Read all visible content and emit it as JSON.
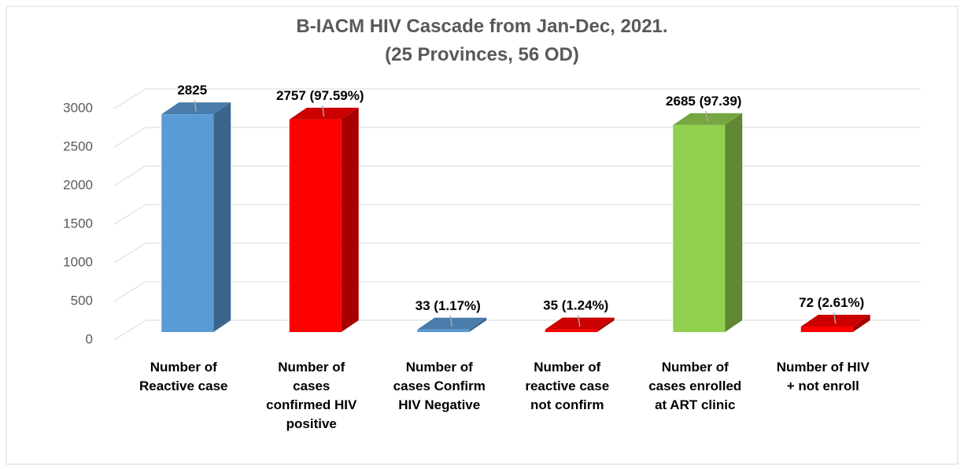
{
  "chart_data": {
    "type": "bar3d",
    "title": "B-IACM HIV Cascade from Jan-Dec, 2021.",
    "subtitle": "(25 Provinces, 56 OD)",
    "categories": [
      "Number of Reactive case",
      "Number of cases confirmed HIV positive",
      "Number of cases Confirm HIV Negative",
      "Number of reactive case not confirm",
      "Number of cases enrolled at ART clinic",
      "Number of HIV + not enroll"
    ],
    "values": [
      2825,
      2757,
      33,
      35,
      2685,
      72
    ],
    "value_labels": [
      "2825",
      "2757 (97.59%)",
      "33 (1.17%)",
      "35 (1.24%)",
      "2685 (97.39)",
      "72 (2.61%)"
    ],
    "colors": [
      "#5b9bd5",
      "#ff0000",
      "#5b9bd5",
      "#ff0000",
      "#92d050",
      "#ff0000"
    ],
    "ylim": [
      0,
      3000
    ],
    "yticks": [
      0,
      500,
      1000,
      1500,
      2000,
      2500,
      3000
    ],
    "grid": true
  }
}
